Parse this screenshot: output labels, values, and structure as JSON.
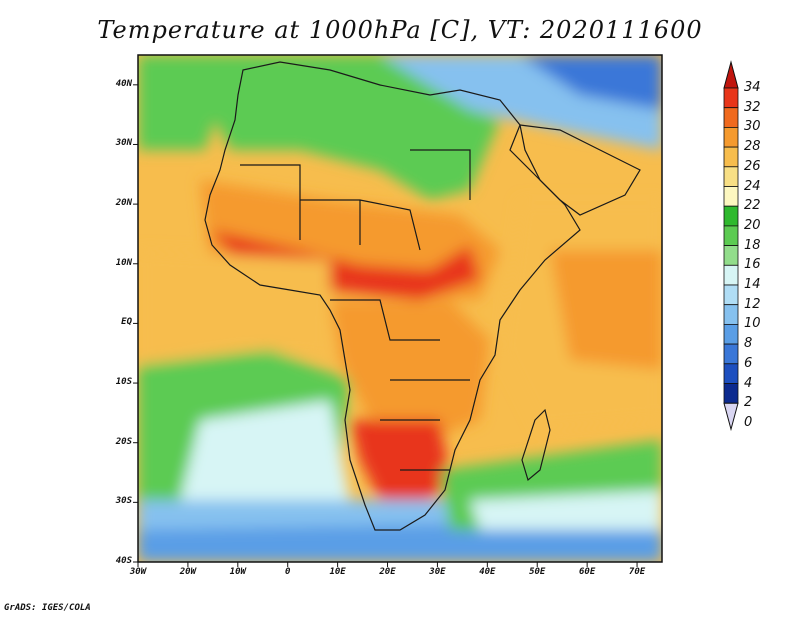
{
  "title": "Temperature at 1000hPa [C], VT: 2020111600",
  "credit": "GrADS: IGES/COLA",
  "map": {
    "lon_range": [
      -30,
      75
    ],
    "lat_range": [
      -40,
      45
    ],
    "lon_ticks": [
      "30W",
      "20W",
      "10W",
      "0",
      "10E",
      "20E",
      "30E",
      "40E",
      "50E",
      "60E",
      "70E"
    ],
    "lat_ticks": [
      "40N",
      "30N",
      "20N",
      "10N",
      "EQ",
      "10S",
      "20S",
      "30S",
      "40S"
    ]
  },
  "colorbar": {
    "labels": [
      "34",
      "32",
      "30",
      "28",
      "26",
      "24",
      "22",
      "20",
      "18",
      "16",
      "14",
      "12",
      "10",
      "8",
      "6",
      "4",
      "2",
      "0"
    ],
    "colors": [
      "#c0150e",
      "#e8361a",
      "#f06a1e",
      "#f59a2e",
      "#f7bd4d",
      "#f8df85",
      "#fdf7c0",
      "#2fb92e",
      "#5ccb52",
      "#92dd8b",
      "#d7f5f5",
      "#b0ddf5",
      "#86c1ef",
      "#5a9ee6",
      "#3a77d8",
      "#1d4fbf",
      "#0c2a8f",
      "#d9d6f2"
    ]
  }
}
